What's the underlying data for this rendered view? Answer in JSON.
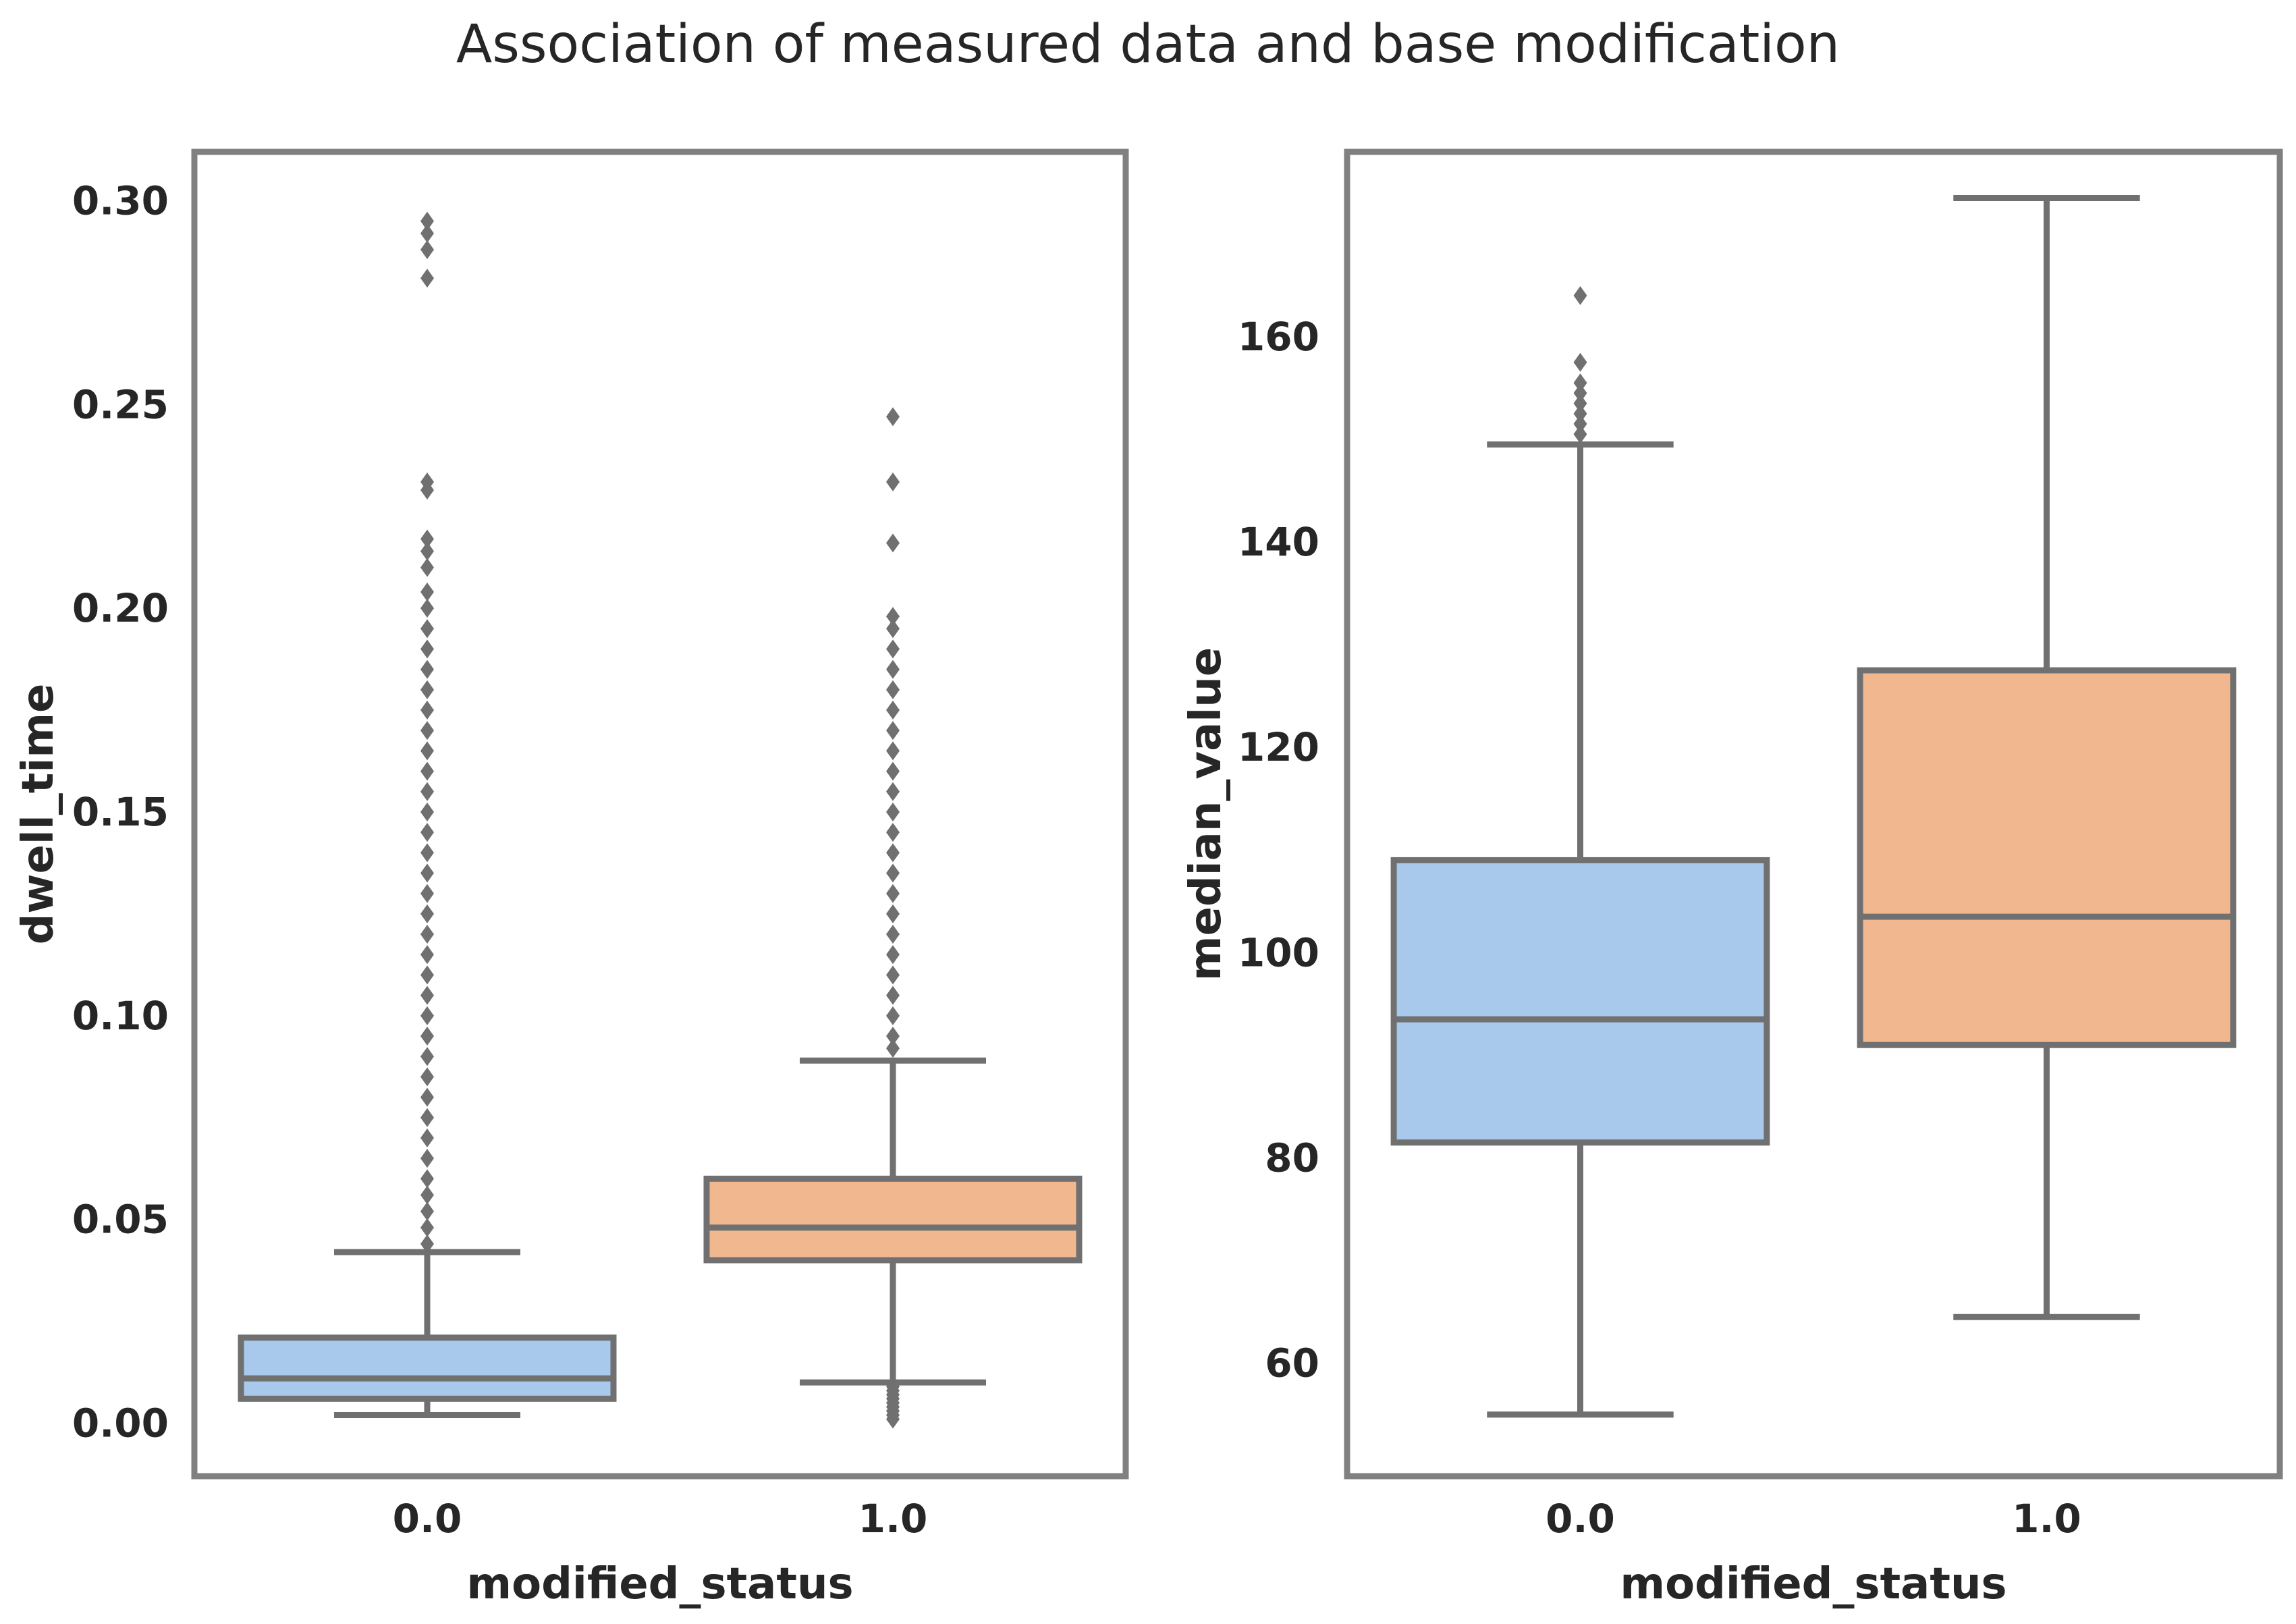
{
  "figure": {
    "title": "Association of measured data and base modification"
  },
  "colors": {
    "box_0": "#a8c8ec",
    "box_1": "#f1b890",
    "lines": "#707070",
    "frame": "#808080",
    "text": "#262626"
  },
  "chart_data": [
    {
      "type": "box",
      "xlabel": "modified_status",
      "ylabel": "dwell_time",
      "categories": [
        "0.0",
        "1.0"
      ],
      "ylim": [
        -0.013,
        0.312
      ],
      "yticks": [
        0.0,
        0.05,
        0.1,
        0.15,
        0.2,
        0.25,
        0.3
      ],
      "ytick_labels": [
        "0.00",
        "0.05",
        "0.10",
        "0.15",
        "0.20",
        "0.25",
        "0.30"
      ],
      "grid": false,
      "boxes": [
        {
          "name": "0.0",
          "whisker_low": 0.002,
          "q1": 0.006,
          "median": 0.011,
          "q3": 0.021,
          "whisker_high": 0.042,
          "fliers": [
            0.044,
            0.048,
            0.052,
            0.056,
            0.06,
            0.065,
            0.07,
            0.075,
            0.08,
            0.085,
            0.09,
            0.095,
            0.1,
            0.105,
            0.11,
            0.115,
            0.12,
            0.125,
            0.13,
            0.135,
            0.14,
            0.145,
            0.15,
            0.155,
            0.16,
            0.165,
            0.17,
            0.175,
            0.18,
            0.185,
            0.19,
            0.195,
            0.2,
            0.204,
            0.21,
            0.214,
            0.217,
            0.229,
            0.231,
            0.281,
            0.288,
            0.292,
            0.295
          ]
        },
        {
          "name": "1.0",
          "whisker_low": 0.01,
          "q1": 0.04,
          "median": 0.048,
          "q3": 0.06,
          "whisker_high": 0.089,
          "fliers": [
            0.001,
            0.002,
            0.003,
            0.004,
            0.005,
            0.006,
            0.007,
            0.008,
            0.009,
            0.092,
            0.095,
            0.1,
            0.105,
            0.11,
            0.115,
            0.12,
            0.125,
            0.13,
            0.135,
            0.14,
            0.145,
            0.15,
            0.155,
            0.16,
            0.165,
            0.17,
            0.175,
            0.18,
            0.185,
            0.19,
            0.195,
            0.198,
            0.216,
            0.231,
            0.247
          ]
        }
      ]
    },
    {
      "type": "box",
      "xlabel": "modified_status",
      "ylabel": "median_value",
      "categories": [
        "0.0",
        "1.0"
      ],
      "ylim": [
        49,
        178
      ],
      "yticks": [
        60,
        80,
        100,
        120,
        140,
        160
      ],
      "ytick_labels": [
        "60",
        "80",
        "100",
        "120",
        "140",
        "160"
      ],
      "grid": false,
      "boxes": [
        {
          "name": "0.0",
          "whisker_low": 55,
          "q1": 81.5,
          "median": 93.5,
          "q3": 109,
          "whisker_high": 149.5,
          "fliers": [
            150.5,
            151.5,
            152.5,
            153.5,
            154.5,
            155.5,
            157.5,
            164
          ]
        },
        {
          "name": "1.0",
          "whisker_low": 64.5,
          "q1": 91,
          "median": 103.5,
          "q3": 127.5,
          "whisker_high": 173.5,
          "fliers": []
        }
      ]
    }
  ]
}
